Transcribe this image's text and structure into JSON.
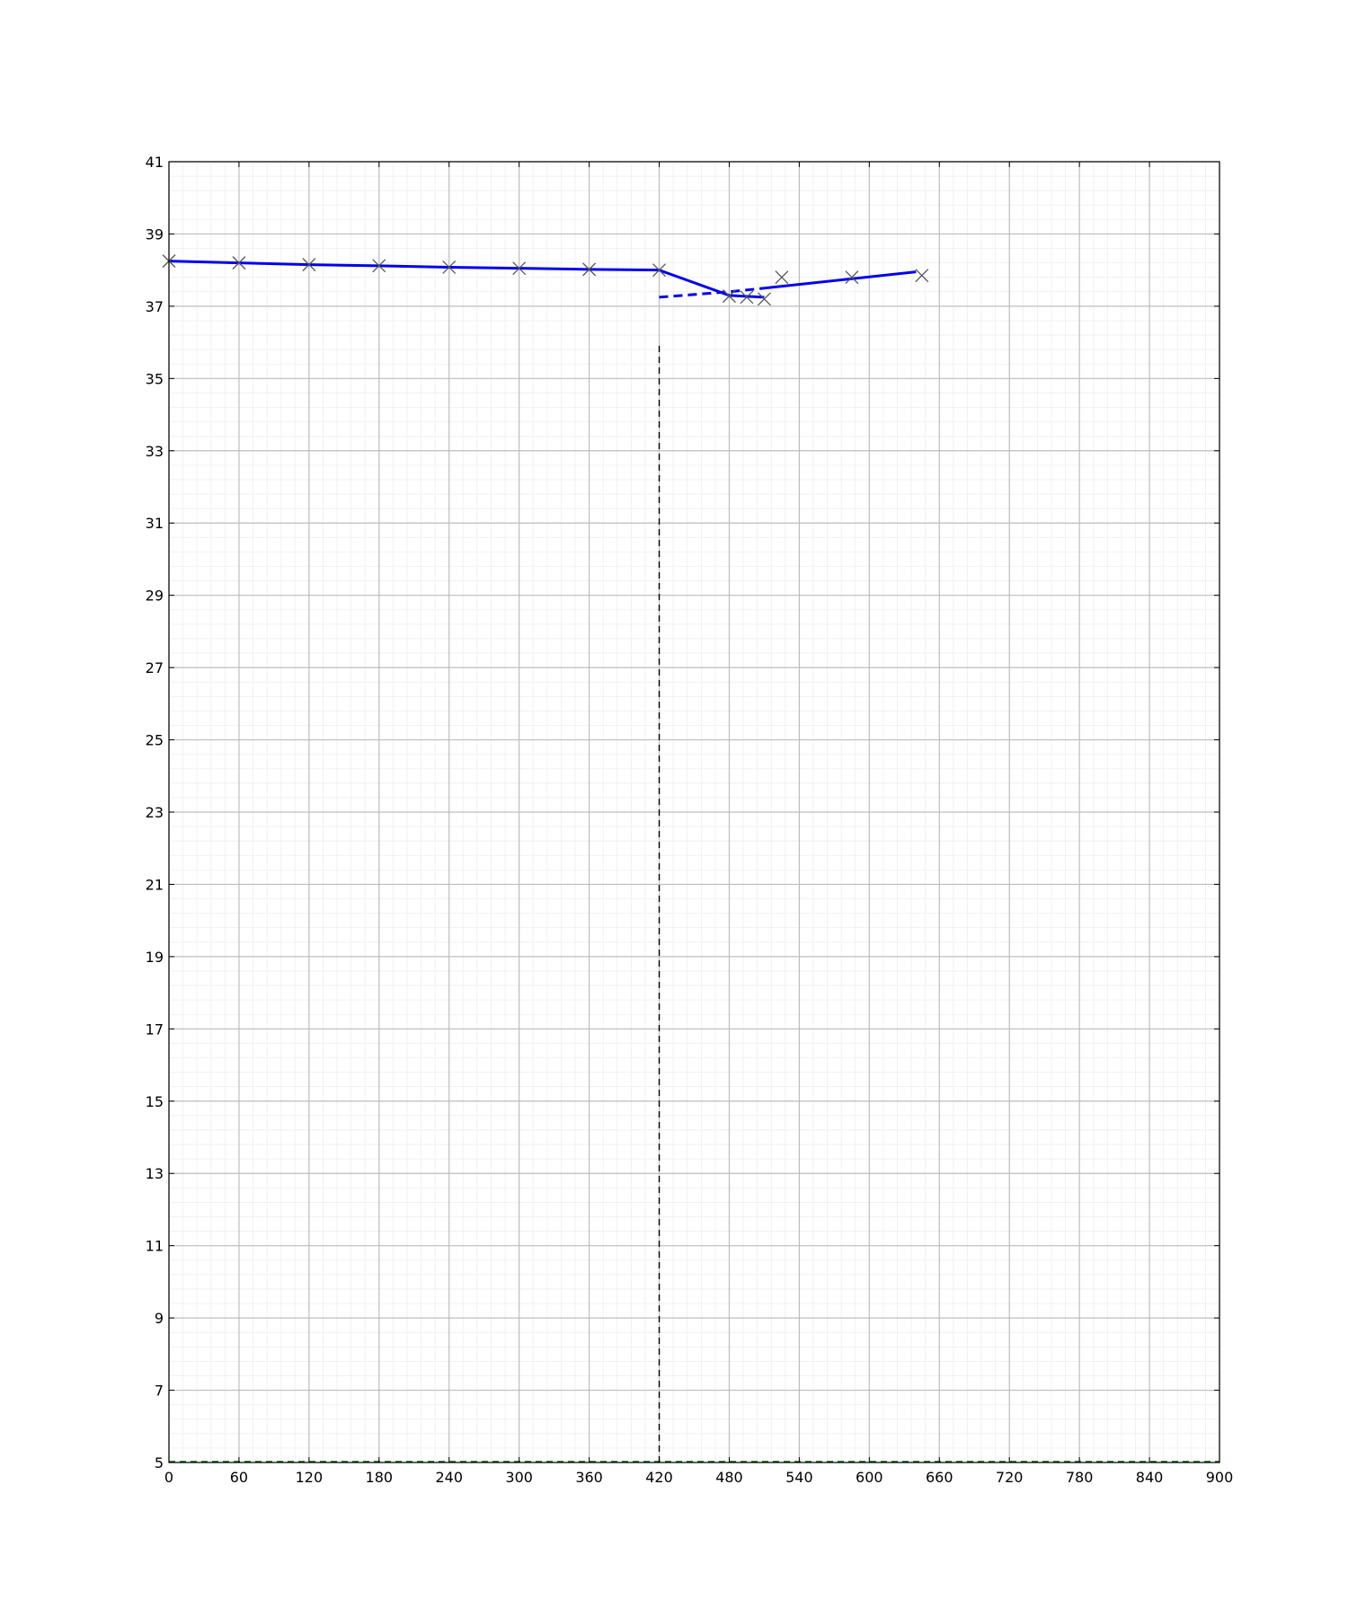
{
  "chart_data": {
    "type": "line",
    "title": "",
    "xlabel": "",
    "ylabel": "",
    "xlim": [
      0,
      900
    ],
    "ylim": [
      5,
      41
    ],
    "grid": true,
    "minor_grid": true,
    "x_ticks": [
      0,
      60,
      120,
      180,
      240,
      300,
      360,
      420,
      480,
      540,
      600,
      660,
      720,
      780,
      840,
      900
    ],
    "y_ticks": [
      5,
      7,
      9,
      11,
      13,
      15,
      17,
      19,
      21,
      23,
      25,
      27,
      29,
      31,
      33,
      35,
      37,
      39,
      41
    ],
    "series": [
      {
        "style": "solid",
        "color": "#0000ee",
        "x": [
          0,
          60,
          120,
          180,
          240,
          300,
          360,
          420,
          480,
          510
        ],
        "y": [
          38.25,
          38.2,
          38.15,
          38.12,
          38.08,
          38.05,
          38.02,
          38.0,
          37.3,
          37.25
        ]
      },
      {
        "style": "dashed",
        "color": "#0000ee",
        "x": [
          420,
          480,
          510
        ],
        "y": [
          37.25,
          37.4,
          37.5
        ]
      },
      {
        "style": "solid",
        "color": "#0000ee",
        "x": [
          510,
          640
        ],
        "y": [
          37.5,
          37.95
        ]
      }
    ],
    "markers": {
      "symbol": "x",
      "color": "#555555",
      "x": [
        0,
        60,
        120,
        180,
        240,
        300,
        360,
        420,
        480,
        495,
        510,
        525,
        585,
        645
      ],
      "y": [
        38.25,
        38.2,
        38.15,
        38.12,
        38.08,
        38.05,
        38.02,
        38.0,
        37.28,
        37.25,
        37.2,
        37.8,
        37.8,
        37.85
      ]
    },
    "reference_lines": [
      {
        "orientation": "vertical",
        "x": 420,
        "y_from": 5,
        "y_to": 36,
        "style": "dashed",
        "color": "#000000"
      },
      {
        "orientation": "horizontal",
        "y": 5,
        "style": "dashed",
        "color": "#006400"
      }
    ]
  }
}
